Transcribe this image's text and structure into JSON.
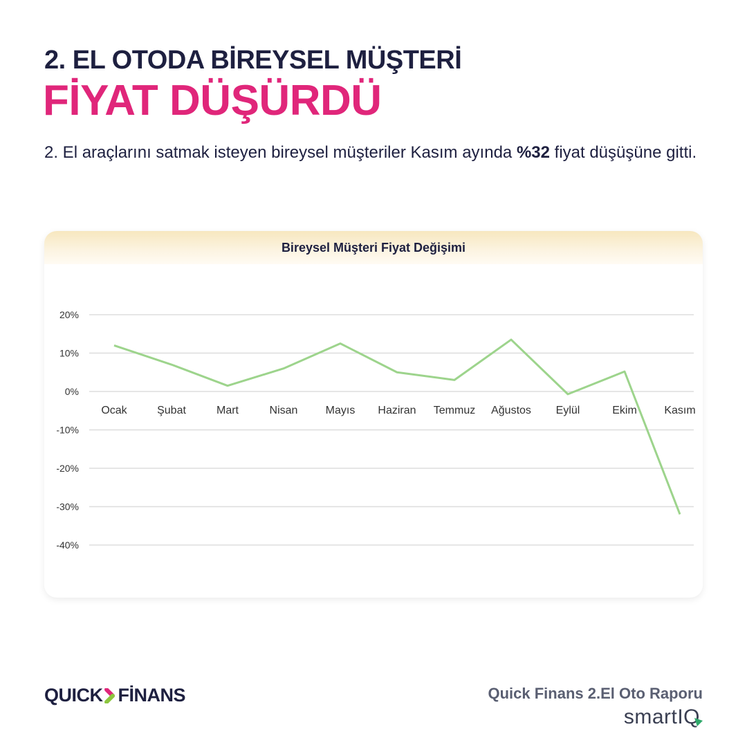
{
  "header": {
    "line1": "2. EL OTODA BİREYSEL MÜŞTERİ",
    "line2": "FİYAT DÜŞÜRDÜ",
    "lead_pre": "2. El araçlarını satmak isteyen bireysel müşteriler Kasım ayında ",
    "lead_bold": "%32",
    "lead_post": " fiyat düşüşüne gitti."
  },
  "colors": {
    "title_dark": "#1e2040",
    "title_accent": "#e0267a",
    "line": "#9dd48c",
    "grid": "#dddddd"
  },
  "chart_data": {
    "type": "line",
    "title": "Bireysel Müşteri Fiyat Değişimi",
    "xlabel": "",
    "ylabel": "",
    "categories": [
      "Ocak",
      "Şubat",
      "Mart",
      "Nisan",
      "Mayıs",
      "Haziran",
      "Temmuz",
      "Ağustos",
      "Eylül",
      "Ekim",
      "Kasım"
    ],
    "series": [
      {
        "name": "Bireysel Müşteri Fiyat Değişimi",
        "values": [
          12,
          7,
          1.5,
          6,
          12.5,
          5,
          3,
          13.5,
          -0.7,
          5.2,
          -32
        ]
      }
    ],
    "yticks": [
      "20%",
      "10%",
      "0%",
      "-10%",
      "-20%",
      "-30%",
      "-40%"
    ],
    "ylim": [
      -40,
      20
    ],
    "grid": true,
    "legend": "none"
  },
  "footer": {
    "logo_left": "QUICK",
    "logo_right": "FİNANS",
    "report_title": "Quick Finans 2.El Oto Raporu",
    "brand": "smartIQ"
  }
}
